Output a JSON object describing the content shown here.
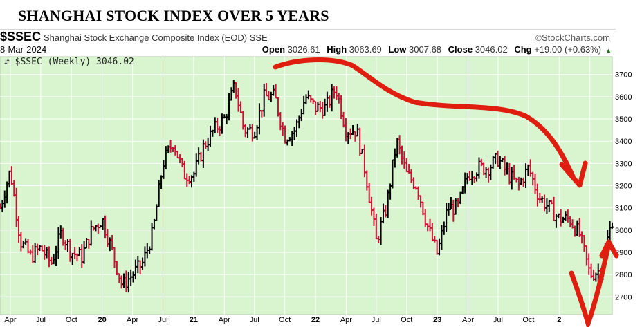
{
  "header": {
    "title": "SHANGHAI STOCK INDEX OVER 5 YEARS",
    "symbol": "$SSEC",
    "description": "Shanghai Stock Exchange Composite Index (EOD)  SSE",
    "brand": "StockCharts.com",
    "date": "8-Mar-2024",
    "open_label": "Open",
    "open": "3026.61",
    "high_label": "High",
    "high": "3063.69",
    "low_label": "Low",
    "low": "3007.68",
    "close_label": "Close",
    "close": "3046.02",
    "chg_label": "Chg",
    "chg": "+19.00 (+0.63%)"
  },
  "legend": {
    "text": "$SSEC (Weekly) 3046.02"
  },
  "colors": {
    "plot_bg": "#d8f5d0",
    "up_bar": "#000000",
    "down_bar": "#cc1133",
    "annotation": "#e01e10",
    "grid": "#ffffff"
  },
  "chart_data": {
    "type": "line",
    "title": "SHANGHAI STOCK INDEX OVER 5 YEARS",
    "chart_style": "weekly OHLC bars",
    "y_axis_side": "right",
    "ylim": [
      2620,
      3780
    ],
    "y_ticks": [
      2700,
      2800,
      2900,
      3000,
      3100,
      3200,
      3300,
      3400,
      3500,
      3600,
      3700
    ],
    "x_tick_labels": [
      "Apr",
      "Jul",
      "Oct",
      "20",
      "Apr",
      "Jul",
      "21",
      "Apr",
      "Jul",
      "Oct",
      "22",
      "Apr",
      "Jul",
      "Oct",
      "23",
      "Apr",
      "Jul",
      "Oct",
      "2"
    ],
    "x_range": [
      "2019-03-01",
      "2024-03-08"
    ],
    "grid": true,
    "series": [
      {
        "name": "$SSEC (Weekly)",
        "x": [
          "2019-03-01",
          "2019-04-01",
          "2019-05-01",
          "2019-06-01",
          "2019-07-01",
          "2019-08-01",
          "2019-09-01",
          "2019-10-01",
          "2019-11-01",
          "2019-12-01",
          "2020-01-01",
          "2020-02-01",
          "2020-03-01",
          "2020-04-01",
          "2020-05-01",
          "2020-06-01",
          "2020-07-01",
          "2020-08-01",
          "2020-09-01",
          "2020-10-01",
          "2020-11-01",
          "2020-12-01",
          "2021-01-01",
          "2021-02-01",
          "2021-03-01",
          "2021-04-01",
          "2021-05-01",
          "2021-06-01",
          "2021-07-01",
          "2021-08-01",
          "2021-09-01",
          "2021-10-01",
          "2021-11-01",
          "2021-12-01",
          "2022-01-01",
          "2022-02-01",
          "2022-03-01",
          "2022-04-01",
          "2022-05-01",
          "2022-06-01",
          "2022-07-01",
          "2022-08-01",
          "2022-09-01",
          "2022-10-01",
          "2022-11-01",
          "2022-12-01",
          "2023-01-01",
          "2023-02-01",
          "2023-03-01",
          "2023-04-01",
          "2023-05-01",
          "2023-06-01",
          "2023-07-01",
          "2023-08-01",
          "2023-09-01",
          "2023-10-01",
          "2023-11-01",
          "2023-12-01",
          "2024-01-01",
          "2024-02-01",
          "2024-03-08"
        ],
        "close": [
          3100,
          3270,
          2950,
          2880,
          2920,
          2850,
          2990,
          2900,
          2880,
          3000,
          3050,
          2900,
          2750,
          2800,
          2850,
          2990,
          3300,
          3400,
          3250,
          3250,
          3380,
          3450,
          3500,
          3650,
          3450,
          3450,
          3600,
          3600,
          3420,
          3450,
          3600,
          3550,
          3550,
          3640,
          3450,
          3450,
          3250,
          2950,
          3100,
          3400,
          3250,
          3200,
          3020,
          2890,
          3100,
          3100,
          3250,
          3280,
          3280,
          3320,
          3250,
          3200,
          3280,
          3150,
          3100,
          3050,
          3050,
          2980,
          2800,
          2820,
          3046
        ]
      }
    ]
  }
}
